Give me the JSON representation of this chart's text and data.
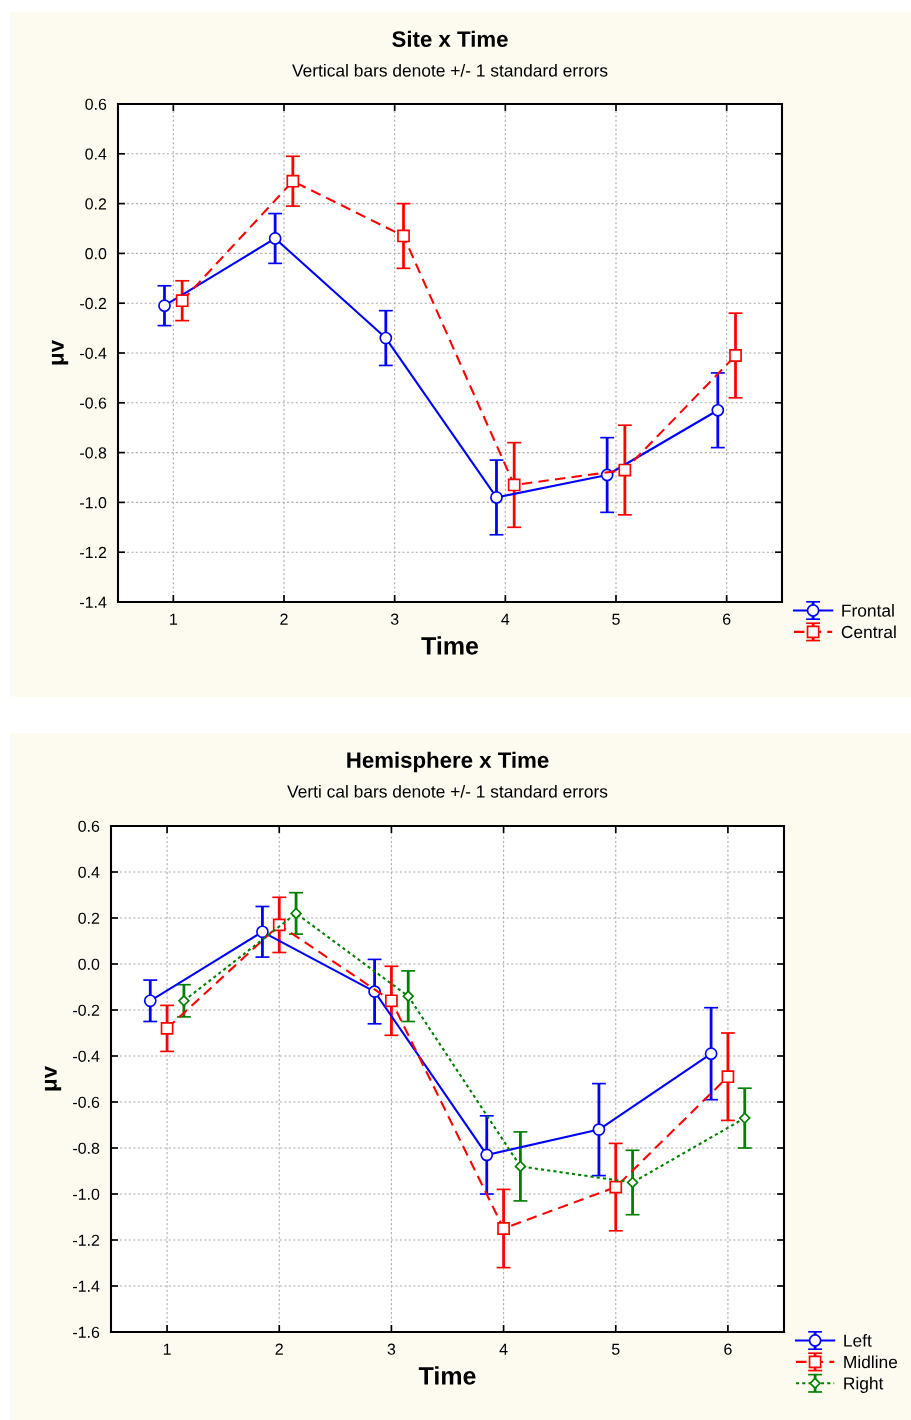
{
  "chart_data": [
    {
      "type": "line",
      "title": "Site x Time",
      "subtitle": "Vertical bars denote +/- 1 standard errors",
      "xlabel": "Time",
      "ylabel": "μv",
      "xlim": [
        0.5,
        6.5
      ],
      "xticks": [
        1,
        2,
        3,
        4,
        5,
        6
      ],
      "ylim": [
        -1.4,
        0.6
      ],
      "yticks": [
        {
          "value": 0.6,
          "label": "0.6"
        },
        {
          "value": 0.4,
          "label": "0.4"
        },
        {
          "value": 0.2,
          "label": "0.2"
        },
        {
          "value": 0.0,
          "label": "0.0"
        },
        {
          "value": -0.2,
          "label": "-0.2"
        },
        {
          "value": -0.4,
          "label": "-0.4"
        },
        {
          "value": -0.6,
          "label": "-0.6"
        },
        {
          "value": -0.8,
          "label": "-0.8"
        },
        {
          "value": -1.0,
          "label": "-1.0"
        },
        {
          "value": -1.2,
          "label": "-1.2"
        },
        {
          "value": -1.4,
          "label": "-1.4"
        }
      ],
      "grid": true,
      "legend": "bottom right",
      "series": [
        {
          "name": "Frontal",
          "color": "#0000ff",
          "marker": "circle",
          "line_style": "solid",
          "x": [
            0.92,
            1.92,
            2.92,
            3.92,
            4.92,
            5.92
          ],
          "values": [
            -0.21,
            0.06,
            -0.34,
            -0.98,
            -0.89,
            -0.63
          ],
          "errors": [
            0.08,
            0.1,
            0.11,
            0.15,
            0.15,
            0.15
          ]
        },
        {
          "name": "Central",
          "color": "#ff0000",
          "marker": "square",
          "line_style": "dashed",
          "x": [
            1.08,
            2.08,
            3.08,
            4.08,
            5.08,
            6.08
          ],
          "values": [
            -0.19,
            0.29,
            0.07,
            -0.93,
            -0.87,
            -0.41
          ],
          "errors": [
            0.08,
            0.1,
            0.13,
            0.17,
            0.18,
            0.17
          ]
        }
      ]
    },
    {
      "type": "line",
      "title": "Hemisphere x Time",
      "subtitle": "Verti cal bars denote +/- 1 standard errors",
      "xlabel": "Time",
      "ylabel": "μv",
      "xlim": [
        0.5,
        6.5
      ],
      "xticks": [
        1,
        2,
        3,
        4,
        5,
        6
      ],
      "ylim": [
        -1.6,
        0.6
      ],
      "yticks": [
        {
          "value": 0.6,
          "label": "0.6"
        },
        {
          "value": 0.4,
          "label": "0.4"
        },
        {
          "value": 0.2,
          "label": "0.2"
        },
        {
          "value": 0.0,
          "label": "0.0"
        },
        {
          "value": -0.2,
          "label": "-0.2"
        },
        {
          "value": -0.4,
          "label": "-0.4"
        },
        {
          "value": -0.6,
          "label": "-0.6"
        },
        {
          "value": -0.8,
          "label": "-0.8"
        },
        {
          "value": -1.0,
          "label": "-1.0"
        },
        {
          "value": -1.2,
          "label": "-1.2"
        },
        {
          "value": -1.4,
          "label": "-1.4"
        },
        {
          "value": -1.6,
          "label": "-1.6"
        }
      ],
      "grid": true,
      "legend": "bottom right",
      "series": [
        {
          "name": "Left",
          "color": "#0000ff",
          "marker": "circle",
          "line_style": "solid",
          "x": [
            0.85,
            1.85,
            2.85,
            3.85,
            4.85,
            5.85
          ],
          "values": [
            -0.16,
            0.14,
            -0.12,
            -0.83,
            -0.72,
            -0.39
          ],
          "errors": [
            0.09,
            0.11,
            0.14,
            0.17,
            0.2,
            0.2
          ]
        },
        {
          "name": "Midline",
          "color": "#ff0000",
          "marker": "square",
          "line_style": "dashed",
          "x": [
            1.0,
            2.0,
            3.0,
            4.0,
            5.0,
            6.0
          ],
          "values": [
            -0.28,
            0.17,
            -0.16,
            -1.15,
            -0.97,
            -0.49
          ],
          "errors": [
            0.1,
            0.12,
            0.15,
            0.17,
            0.19,
            0.19
          ]
        },
        {
          "name": "Right",
          "color": "#008000",
          "marker": "diamond",
          "line_style": "dotted",
          "x": [
            1.15,
            2.15,
            3.15,
            4.15,
            5.15,
            6.15
          ],
          "values": [
            -0.16,
            0.22,
            -0.14,
            -0.88,
            -0.95,
            -0.67
          ],
          "errors": [
            0.07,
            0.09,
            0.11,
            0.15,
            0.14,
            0.13
          ]
        }
      ]
    }
  ]
}
